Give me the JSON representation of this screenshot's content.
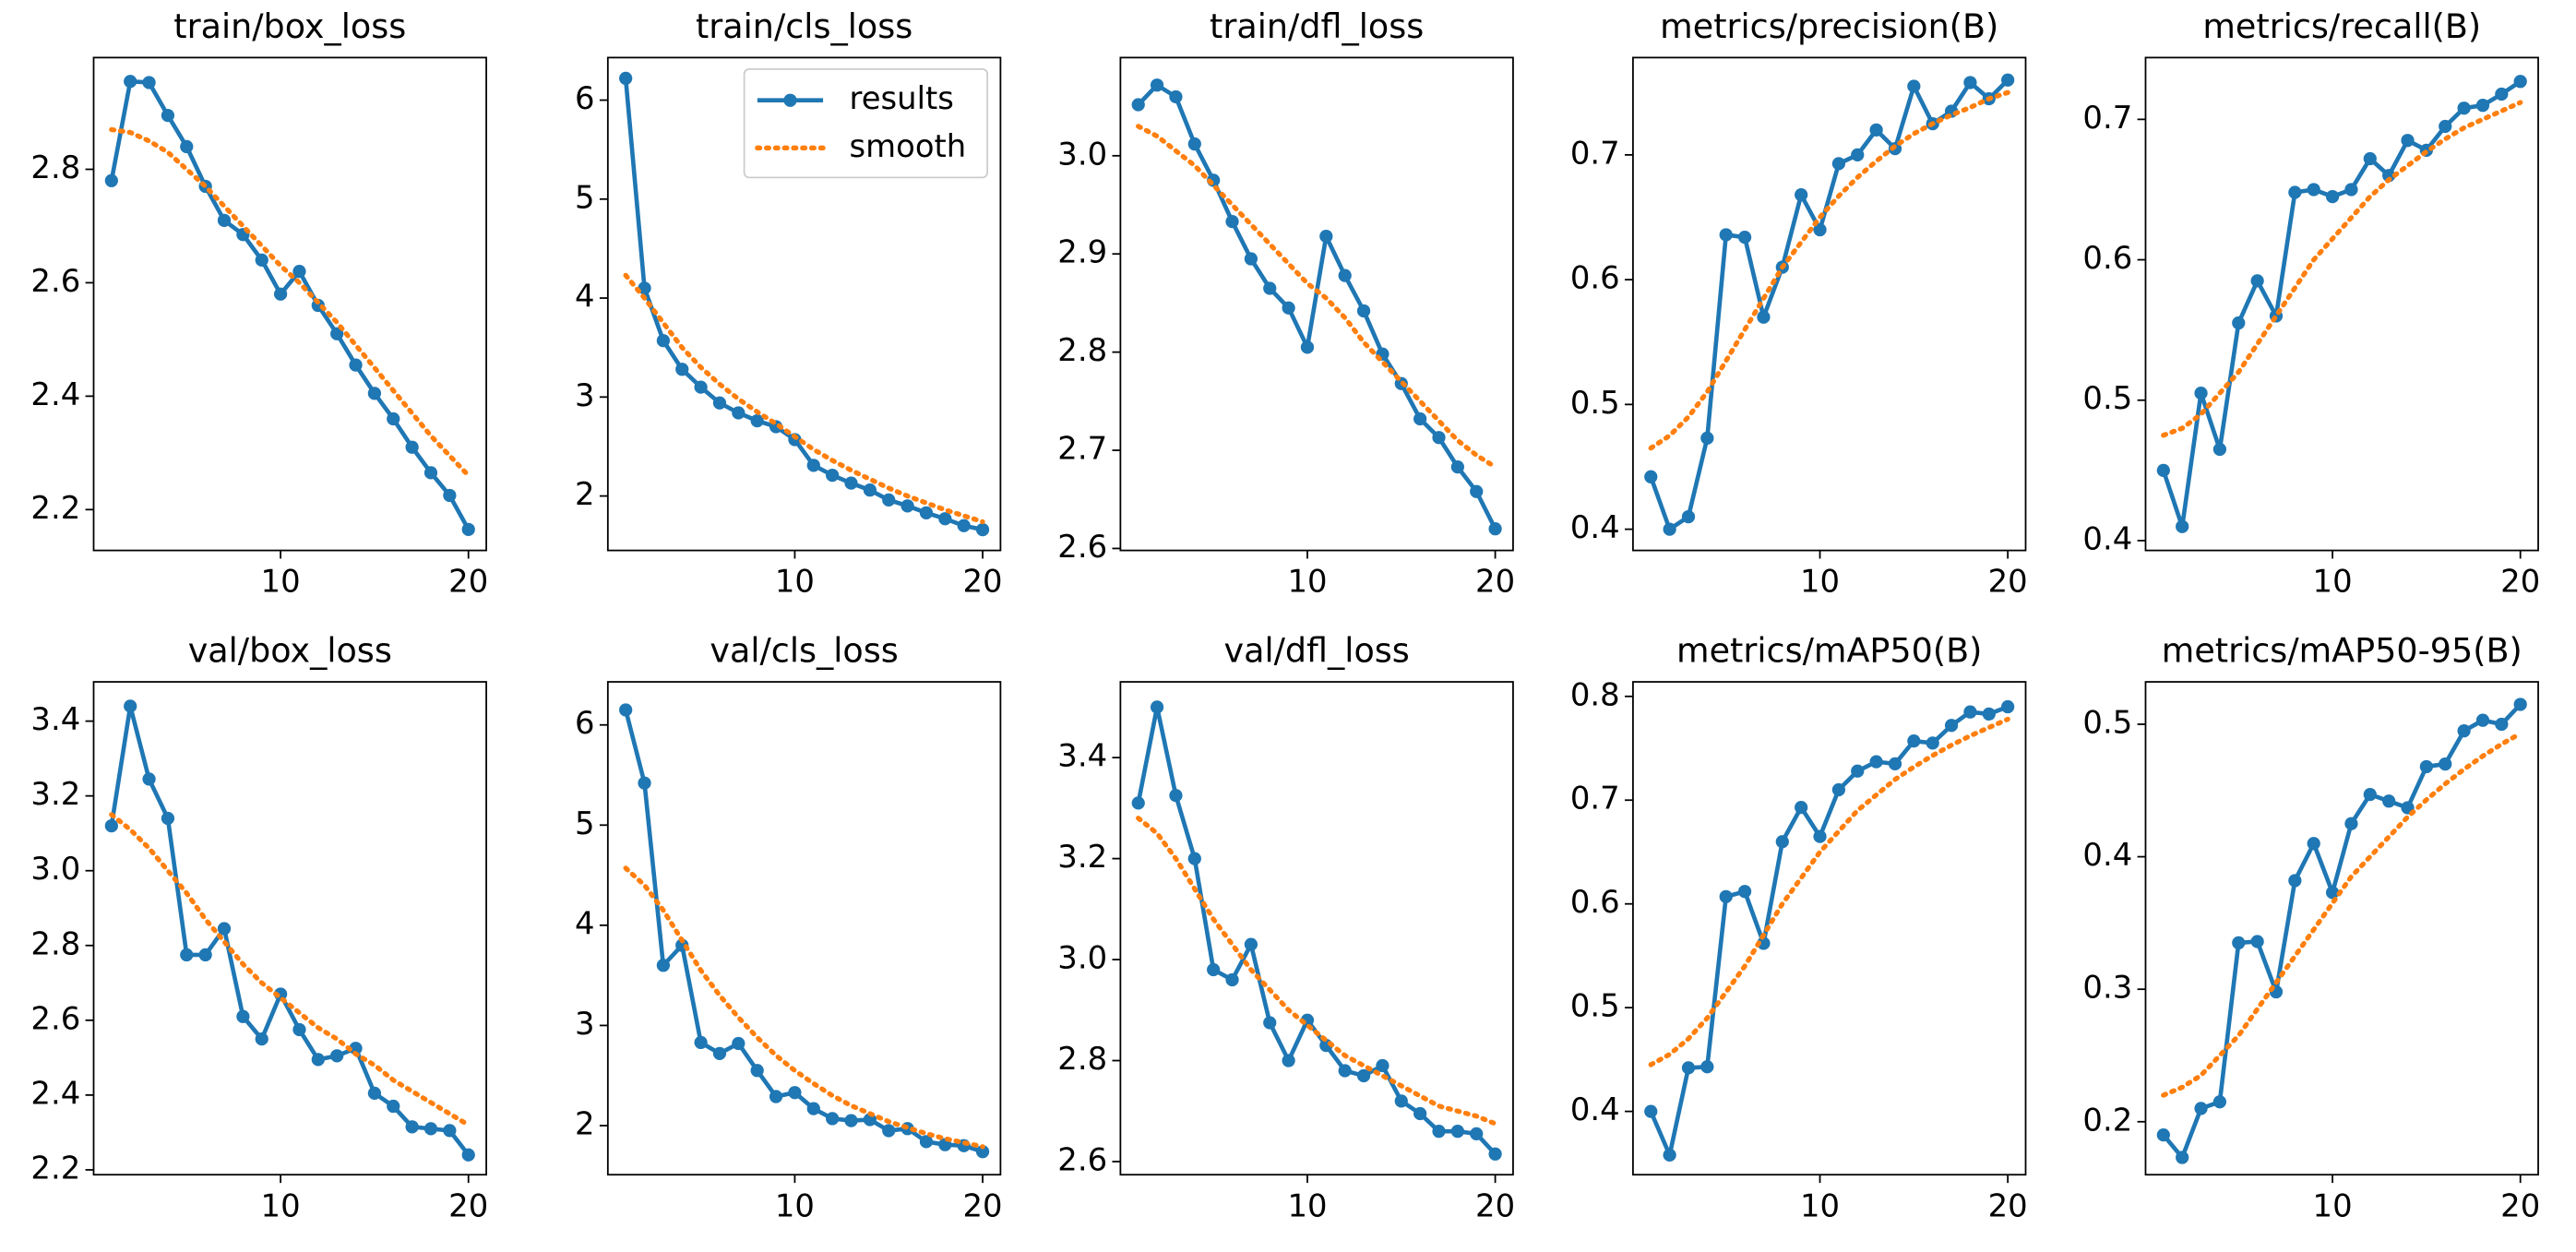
{
  "chart_data": [
    {
      "type": "line",
      "title": "train/box_loss",
      "x": [
        1,
        2,
        3,
        4,
        5,
        6,
        7,
        8,
        9,
        10,
        11,
        12,
        13,
        14,
        15,
        16,
        17,
        18,
        19,
        20
      ],
      "xlim": [
        0.05,
        20.95
      ],
      "xticks": [
        10,
        20
      ],
      "ylim": [
        2.128,
        2.997
      ],
      "yticks": [
        2.2,
        2.4,
        2.6,
        2.8
      ],
      "series": [
        {
          "name": "results",
          "color": "#1f77b4",
          "values": [
            2.78,
            2.955,
            2.953,
            2.895,
            2.84,
            2.77,
            2.71,
            2.685,
            2.64,
            2.58,
            2.62,
            2.56,
            2.51,
            2.455,
            2.405,
            2.36,
            2.31,
            2.265,
            2.225,
            2.165
          ]
        },
        {
          "name": "smooth",
          "color": "#ff7f0e",
          "values": [
            2.87,
            2.865,
            2.85,
            2.83,
            2.8,
            2.77,
            2.735,
            2.7,
            2.665,
            2.63,
            2.6,
            2.565,
            2.53,
            2.49,
            2.45,
            2.41,
            2.37,
            2.33,
            2.295,
            2.26
          ]
        }
      ]
    },
    {
      "type": "line",
      "title": "train/cls_loss",
      "x": [
        1,
        2,
        3,
        4,
        5,
        6,
        7,
        8,
        9,
        10,
        11,
        12,
        13,
        14,
        15,
        16,
        17,
        18,
        19,
        20
      ],
      "xlim": [
        0.05,
        20.95
      ],
      "xticks": [
        10,
        20
      ],
      "ylim": [
        1.45,
        6.43
      ],
      "yticks": [
        2,
        3,
        4,
        5,
        6
      ],
      "legend": "upper right",
      "series": [
        {
          "name": "results",
          "color": "#1f77b4",
          "values": [
            6.22,
            4.1,
            3.57,
            3.28,
            3.1,
            2.94,
            2.84,
            2.76,
            2.7,
            2.57,
            2.31,
            2.21,
            2.13,
            2.06,
            1.96,
            1.9,
            1.83,
            1.77,
            1.7,
            1.66
          ]
        },
        {
          "name": "smooth",
          "color": "#ff7f0e",
          "values": [
            4.23,
            4.0,
            3.75,
            3.5,
            3.3,
            3.13,
            2.98,
            2.85,
            2.73,
            2.6,
            2.47,
            2.36,
            2.26,
            2.17,
            2.08,
            2.0,
            1.93,
            1.86,
            1.8,
            1.74
          ]
        }
      ]
    },
    {
      "type": "line",
      "title": "train/dfl_loss",
      "x": [
        1,
        2,
        3,
        4,
        5,
        6,
        7,
        8,
        9,
        10,
        11,
        12,
        13,
        14,
        15,
        16,
        17,
        18,
        19,
        20
      ],
      "xlim": [
        0.05,
        20.95
      ],
      "xticks": [
        10,
        20
      ],
      "ylim": [
        2.598,
        3.1
      ],
      "yticks": [
        2.6,
        2.7,
        2.8,
        2.9,
        {
          "value": 3.0,
          "label": "3.0"
        }
      ],
      "series": [
        {
          "name": "results",
          "color": "#1f77b4",
          "values": [
            3.052,
            3.072,
            3.06,
            3.012,
            2.975,
            2.933,
            2.895,
            2.865,
            2.845,
            2.805,
            2.918,
            2.878,
            2.842,
            2.798,
            2.768,
            2.732,
            2.713,
            2.683,
            2.658,
            2.62
          ]
        },
        {
          "name": "smooth",
          "color": "#ff7f0e",
          "values": [
            3.03,
            3.02,
            3.005,
            2.99,
            2.97,
            2.95,
            2.93,
            2.91,
            2.89,
            2.87,
            2.855,
            2.835,
            2.81,
            2.79,
            2.77,
            2.75,
            2.73,
            2.71,
            2.695,
            2.683
          ]
        }
      ]
    },
    {
      "type": "line",
      "title": "metrics/precision(B)",
      "x": [
        1,
        2,
        3,
        4,
        5,
        6,
        7,
        8,
        9,
        10,
        11,
        12,
        13,
        14,
        15,
        16,
        17,
        18,
        19,
        20
      ],
      "xlim": [
        0.05,
        20.95
      ],
      "xticks": [
        10,
        20
      ],
      "ylim": [
        0.383,
        0.778
      ],
      "yticks": [
        0.4,
        0.5,
        0.6,
        0.7
      ],
      "series": [
        {
          "name": "results",
          "color": "#1f77b4",
          "values": [
            0.442,
            0.4,
            0.41,
            0.473,
            0.636,
            0.634,
            0.57,
            0.61,
            0.668,
            0.64,
            0.693,
            0.7,
            0.72,
            0.705,
            0.755,
            0.725,
            0.735,
            0.758,
            0.745,
            0.76
          ]
        },
        {
          "name": "smooth",
          "color": "#ff7f0e",
          "values": [
            0.465,
            0.475,
            0.49,
            0.51,
            0.535,
            0.56,
            0.585,
            0.61,
            0.63,
            0.65,
            0.667,
            0.682,
            0.695,
            0.707,
            0.717,
            0.725,
            0.732,
            0.738,
            0.745,
            0.75
          ]
        }
      ]
    },
    {
      "type": "line",
      "title": "metrics/recall(B)",
      "x": [
        1,
        2,
        3,
        4,
        5,
        6,
        7,
        8,
        9,
        10,
        11,
        12,
        13,
        14,
        15,
        16,
        17,
        18,
        19,
        20
      ],
      "xlim": [
        0.05,
        20.95
      ],
      "xticks": [
        10,
        20
      ],
      "ylim": [
        0.393,
        0.744
      ],
      "yticks": [
        0.4,
        0.5,
        0.6,
        0.7
      ],
      "series": [
        {
          "name": "results",
          "color": "#1f77b4",
          "values": [
            0.45,
            0.41,
            0.505,
            0.465,
            0.555,
            0.585,
            0.56,
            0.648,
            0.65,
            0.645,
            0.65,
            0.672,
            0.66,
            0.685,
            0.678,
            0.695,
            0.708,
            0.71,
            0.718,
            0.727
          ]
        },
        {
          "name": "smooth",
          "color": "#ff7f0e",
          "values": [
            0.475,
            0.48,
            0.49,
            0.505,
            0.52,
            0.54,
            0.56,
            0.58,
            0.6,
            0.615,
            0.63,
            0.645,
            0.657,
            0.667,
            0.677,
            0.686,
            0.694,
            0.7,
            0.706,
            0.712
          ]
        }
      ]
    },
    {
      "type": "line",
      "title": "val/box_loss",
      "x": [
        1,
        2,
        3,
        4,
        5,
        6,
        7,
        8,
        9,
        10,
        11,
        12,
        13,
        14,
        15,
        16,
        17,
        18,
        19,
        20
      ],
      "xlim": [
        0.05,
        20.95
      ],
      "xticks": [
        10,
        20
      ],
      "ylim": [
        2.187,
        3.505
      ],
      "yticks": [
        2.2,
        2.4,
        2.6,
        2.8,
        {
          "value": 3.0,
          "label": "3.0"
        },
        3.2,
        3.4
      ],
      "series": [
        {
          "name": "results",
          "color": "#1f77b4",
          "values": [
            3.12,
            3.44,
            3.245,
            3.14,
            2.775,
            2.775,
            2.845,
            2.61,
            2.55,
            2.67,
            2.575,
            2.495,
            2.505,
            2.525,
            2.405,
            2.37,
            2.315,
            2.31,
            2.305,
            2.24
          ]
        },
        {
          "name": "smooth",
          "color": "#ff7f0e",
          "values": [
            3.15,
            3.11,
            3.06,
            3.0,
            2.94,
            2.87,
            2.81,
            2.75,
            2.7,
            2.66,
            2.62,
            2.58,
            2.55,
            2.51,
            2.48,
            2.44,
            2.41,
            2.38,
            2.35,
            2.32
          ]
        }
      ]
    },
    {
      "type": "line",
      "title": "val/cls_loss",
      "x": [
        1,
        2,
        3,
        4,
        5,
        6,
        7,
        8,
        9,
        10,
        11,
        12,
        13,
        14,
        15,
        16,
        17,
        18,
        19,
        20
      ],
      "xlim": [
        0.05,
        20.95
      ],
      "xticks": [
        10,
        20
      ],
      "ylim": [
        1.51,
        6.43
      ],
      "yticks": [
        2,
        3,
        4,
        5,
        6
      ],
      "series": [
        {
          "name": "results",
          "color": "#1f77b4",
          "values": [
            6.15,
            5.42,
            3.6,
            3.8,
            2.83,
            2.72,
            2.82,
            2.55,
            2.29,
            2.33,
            2.17,
            2.07,
            2.05,
            2.06,
            1.95,
            1.97,
            1.84,
            1.81,
            1.8,
            1.74
          ]
        },
        {
          "name": "smooth",
          "color": "#ff7f0e",
          "values": [
            4.57,
            4.4,
            4.15,
            3.85,
            3.55,
            3.3,
            3.08,
            2.88,
            2.7,
            2.55,
            2.42,
            2.3,
            2.2,
            2.12,
            2.04,
            1.98,
            1.92,
            1.87,
            1.83,
            1.79
          ]
        }
      ]
    },
    {
      "type": "line",
      "title": "val/dfl_loss",
      "x": [
        1,
        2,
        3,
        4,
        5,
        6,
        7,
        8,
        9,
        10,
        11,
        12,
        13,
        14,
        15,
        16,
        17,
        18,
        19,
        20
      ],
      "xlim": [
        0.05,
        20.95
      ],
      "xticks": [
        10,
        20
      ],
      "ylim": [
        2.574,
        3.55
      ],
      "yticks": [
        2.6,
        2.8,
        {
          "value": 3.0,
          "label": "3.0"
        },
        3.2,
        3.4
      ],
      "series": [
        {
          "name": "results",
          "color": "#1f77b4",
          "values": [
            3.31,
            3.5,
            3.325,
            3.2,
            2.98,
            2.96,
            3.03,
            2.875,
            2.8,
            2.88,
            2.83,
            2.78,
            2.77,
            2.79,
            2.72,
            2.695,
            2.66,
            2.66,
            2.655,
            2.615
          ]
        },
        {
          "name": "smooth",
          "color": "#ff7f0e",
          "values": [
            3.28,
            3.25,
            3.2,
            3.14,
            3.08,
            3.03,
            2.98,
            2.94,
            2.9,
            2.87,
            2.84,
            2.81,
            2.79,
            2.77,
            2.75,
            2.73,
            2.71,
            2.7,
            2.69,
            2.675
          ]
        }
      ]
    },
    {
      "type": "line",
      "title": "metrics/mAP50(B)",
      "x": [
        1,
        2,
        3,
        4,
        5,
        6,
        7,
        8,
        9,
        10,
        11,
        12,
        13,
        14,
        15,
        16,
        17,
        18,
        19,
        20
      ],
      "xlim": [
        0.05,
        20.95
      ],
      "xticks": [
        10,
        20
      ],
      "ylim": [
        0.339,
        0.814
      ],
      "yticks": [
        0.4,
        0.5,
        0.6,
        0.7,
        0.8
      ],
      "series": [
        {
          "name": "results",
          "color": "#1f77b4",
          "values": [
            0.4,
            0.358,
            0.442,
            0.443,
            0.607,
            0.612,
            0.562,
            0.66,
            0.693,
            0.665,
            0.71,
            0.728,
            0.737,
            0.735,
            0.757,
            0.755,
            0.772,
            0.785,
            0.783,
            0.79
          ]
        },
        {
          "name": "smooth",
          "color": "#ff7f0e",
          "values": [
            0.445,
            0.455,
            0.47,
            0.49,
            0.515,
            0.54,
            0.57,
            0.6,
            0.625,
            0.65,
            0.67,
            0.69,
            0.705,
            0.72,
            0.732,
            0.743,
            0.753,
            0.762,
            0.77,
            0.778
          ]
        }
      ]
    },
    {
      "type": "line",
      "title": "metrics/mAP50-95(B)",
      "x": [
        1,
        2,
        3,
        4,
        5,
        6,
        7,
        8,
        9,
        10,
        11,
        12,
        13,
        14,
        15,
        16,
        17,
        18,
        19,
        20
      ],
      "xlim": [
        0.05,
        20.95
      ],
      "xticks": [
        10,
        20
      ],
      "ylim": [
        0.16,
        0.532
      ],
      "yticks": [
        0.2,
        0.3,
        0.4,
        0.5
      ],
      "series": [
        {
          "name": "results",
          "color": "#1f77b4",
          "values": [
            0.19,
            0.173,
            0.21,
            0.215,
            0.335,
            0.336,
            0.298,
            0.382,
            0.41,
            0.373,
            0.425,
            0.447,
            0.442,
            0.437,
            0.468,
            0.47,
            0.495,
            0.503,
            0.5,
            0.515
          ]
        },
        {
          "name": "smooth",
          "color": "#ff7f0e",
          "values": [
            0.22,
            0.226,
            0.235,
            0.25,
            0.265,
            0.285,
            0.305,
            0.325,
            0.345,
            0.365,
            0.385,
            0.4,
            0.415,
            0.43,
            0.443,
            0.455,
            0.466,
            0.476,
            0.485,
            0.493
          ]
        }
      ]
    }
  ]
}
